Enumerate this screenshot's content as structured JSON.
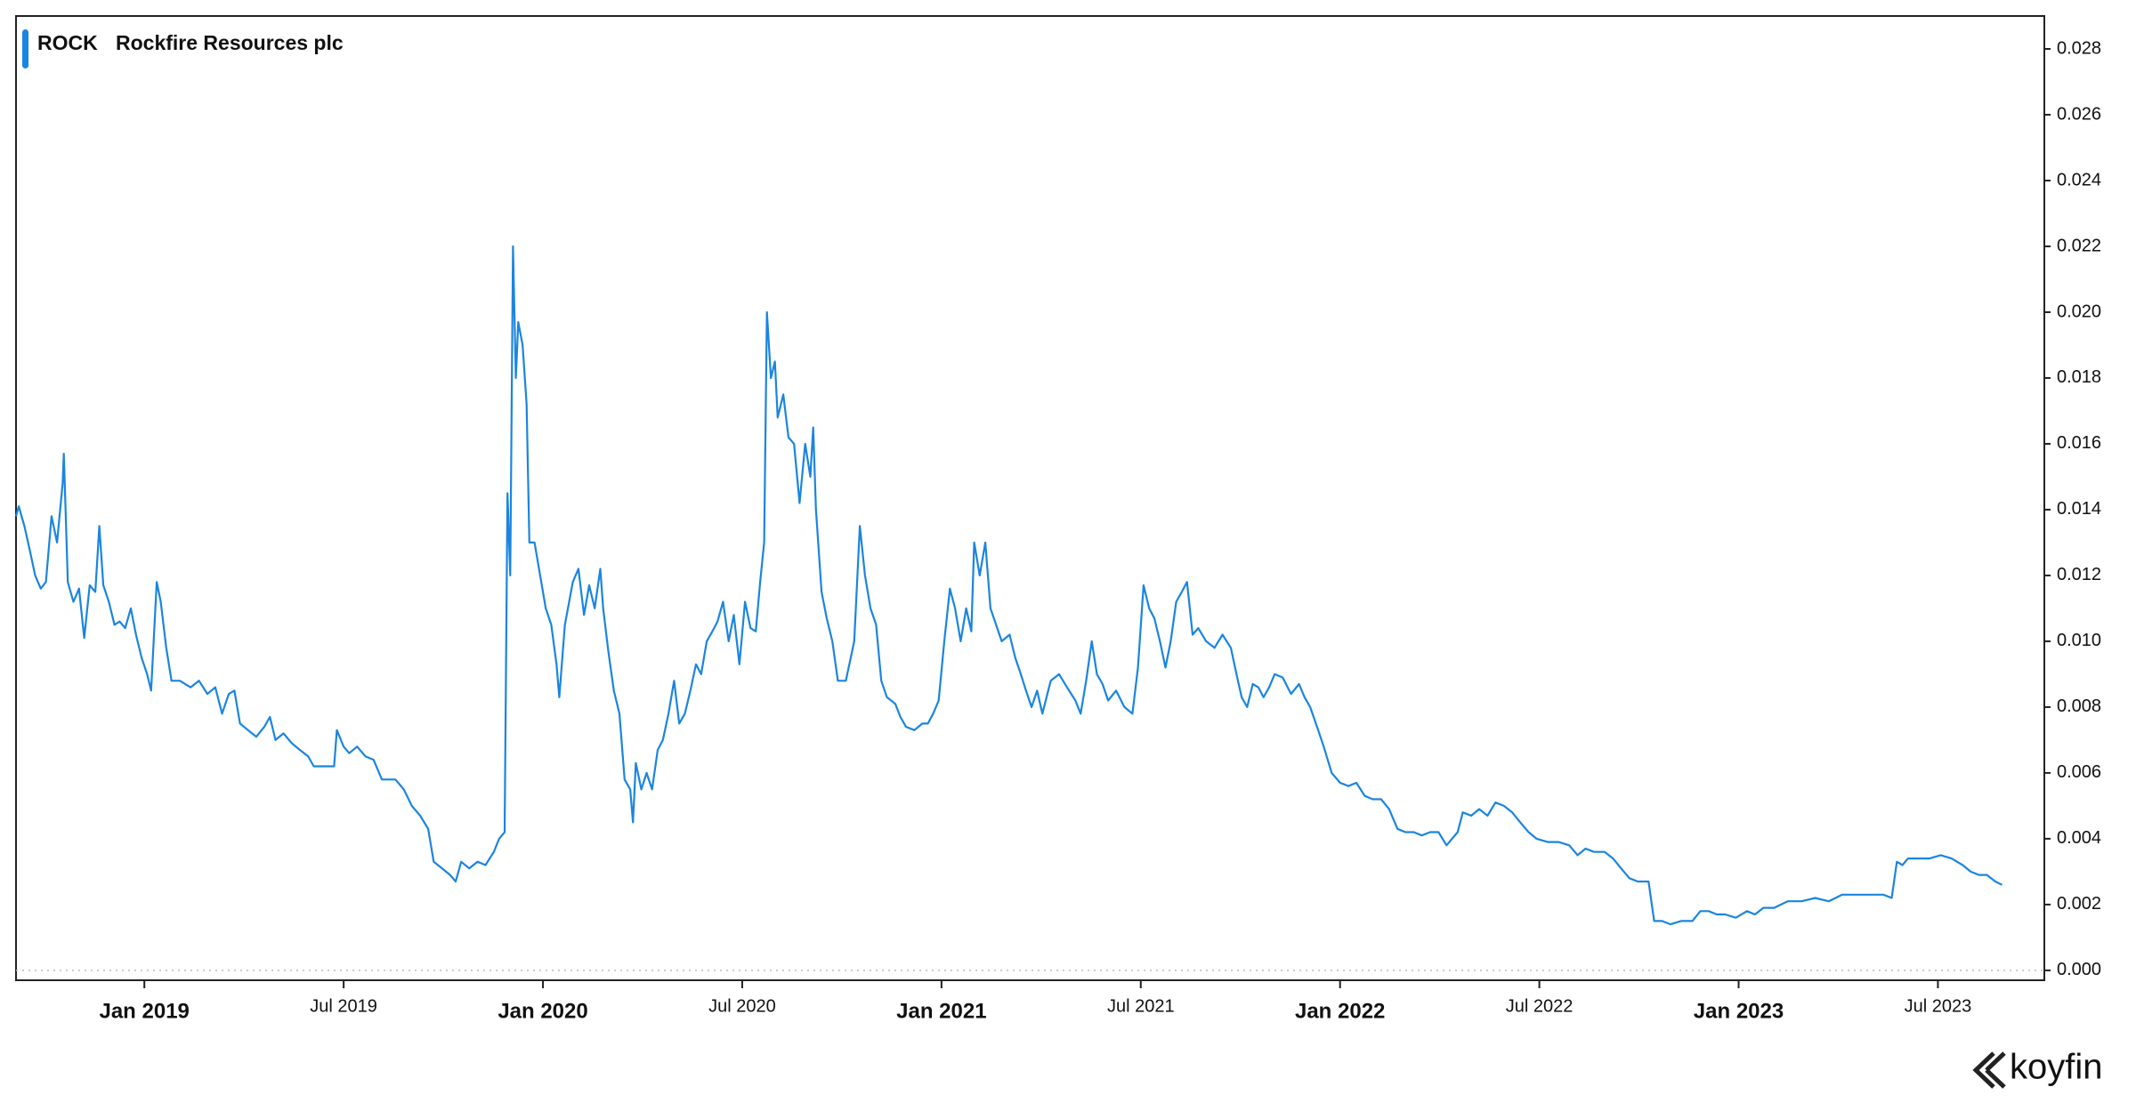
{
  "chart_data": {
    "type": "line",
    "logo": "koyfin",
    "x": [
      2018.678,
      2018.685,
      2018.699,
      2018.712,
      2018.726,
      2018.74,
      2018.753,
      2018.767,
      2018.781,
      2018.795,
      2018.798,
      2018.808,
      2018.822,
      2018.836,
      2018.849,
      2018.863,
      2018.877,
      2018.887,
      2018.897,
      2018.911,
      2018.925,
      2018.938,
      2018.952,
      2018.966,
      2018.979,
      2018.993,
      2019.007,
      2019.017,
      2019.031,
      2019.041,
      2019.055,
      2019.068,
      2019.089,
      2019.116,
      2019.137,
      2019.158,
      2019.178,
      2019.195,
      2019.212,
      2019.226,
      2019.24,
      2019.26,
      2019.281,
      2019.301,
      2019.315,
      2019.329,
      2019.349,
      2019.37,
      2019.39,
      2019.411,
      2019.425,
      2019.459,
      2019.476,
      2019.483,
      2019.5,
      2019.514,
      2019.534,
      2019.555,
      2019.575,
      2019.596,
      2019.63,
      2019.651,
      2019.671,
      2019.692,
      2019.712,
      2019.726,
      2019.747,
      2019.767,
      2019.781,
      2019.795,
      2019.815,
      2019.836,
      2019.856,
      2019.877,
      2019.89,
      2019.904,
      2019.911,
      2019.918,
      2019.925,
      2019.932,
      2019.938,
      2019.949,
      2019.959,
      2019.966,
      2019.979,
      2019.993,
      2020.007,
      2020.021,
      2020.034,
      2020.041,
      2020.055,
      2020.075,
      2020.089,
      2020.103,
      2020.116,
      2020.13,
      2020.144,
      2020.151,
      2020.164,
      2020.178,
      2020.192,
      2020.205,
      2020.219,
      2020.226,
      2020.233,
      2020.247,
      2020.26,
      2020.274,
      2020.288,
      2020.301,
      2020.315,
      2020.329,
      2020.342,
      2020.356,
      2020.37,
      2020.384,
      2020.397,
      2020.411,
      2020.425,
      2020.438,
      2020.452,
      2020.466,
      2020.479,
      2020.493,
      2020.507,
      2020.521,
      2020.534,
      2020.545,
      2020.555,
      2020.562,
      2020.572,
      2020.582,
      2020.589,
      2020.603,
      2020.616,
      2020.63,
      2020.644,
      2020.658,
      2020.671,
      2020.678,
      2020.685,
      2020.699,
      2020.712,
      2020.726,
      2020.74,
      2020.76,
      2020.781,
      2020.795,
      2020.808,
      2020.822,
      2020.836,
      2020.849,
      2020.863,
      2020.884,
      2020.897,
      2020.911,
      2020.932,
      2020.952,
      2020.966,
      2020.979,
      2020.993,
      2021.007,
      2021.021,
      2021.034,
      2021.048,
      2021.062,
      2021.075,
      2021.082,
      2021.096,
      2021.11,
      2021.123,
      2021.137,
      2021.151,
      2021.171,
      2021.185,
      2021.199,
      2021.212,
      2021.226,
      2021.24,
      2021.253,
      2021.274,
      2021.295,
      2021.315,
      2021.336,
      2021.349,
      2021.363,
      2021.377,
      2021.39,
      2021.404,
      2021.418,
      2021.438,
      2021.459,
      2021.479,
      2021.493,
      2021.507,
      2021.521,
      2021.534,
      2021.548,
      2021.562,
      2021.575,
      2021.589,
      2021.603,
      2021.616,
      2021.63,
      2021.644,
      2021.664,
      2021.685,
      2021.705,
      2021.726,
      2021.74,
      2021.753,
      2021.767,
      2021.781,
      2021.795,
      2021.808,
      2021.822,
      2021.836,
      2021.856,
      2021.877,
      2021.897,
      2021.911,
      2021.925,
      2021.945,
      2021.959,
      2021.979,
      2022.0,
      2022.021,
      2022.041,
      2022.062,
      2022.082,
      2022.103,
      2022.123,
      2022.144,
      2022.164,
      2022.185,
      2022.205,
      2022.226,
      2022.247,
      2022.267,
      2022.281,
      2022.295,
      2022.308,
      2022.329,
      2022.349,
      2022.37,
      2022.39,
      2022.411,
      2022.432,
      2022.452,
      2022.473,
      2022.493,
      2022.521,
      2022.548,
      2022.575,
      2022.596,
      2022.616,
      2022.637,
      2022.664,
      2022.685,
      2022.705,
      2022.726,
      2022.747,
      2022.774,
      2022.788,
      2022.808,
      2022.829,
      2022.856,
      2022.884,
      2022.904,
      2022.925,
      2022.945,
      2022.966,
      2022.993,
      2023.021,
      2023.041,
      2023.062,
      2023.089,
      2023.123,
      2023.158,
      2023.192,
      2023.226,
      2023.26,
      2023.295,
      2023.329,
      2023.363,
      2023.384,
      2023.397,
      2023.411,
      2023.425,
      2023.452,
      2023.479,
      2023.507,
      2023.534,
      2023.562,
      2023.582,
      2023.603,
      2023.623,
      2023.644,
      2023.661
    ],
    "series": [
      {
        "name": "ROCK",
        "description": "Rockfire Resources plc",
        "color": "#1a85e0",
        "values": [
          0.0138,
          0.0141,
          0.0135,
          0.0128,
          0.012,
          0.0116,
          0.0118,
          0.0138,
          0.013,
          0.0148,
          0.0157,
          0.0118,
          0.0112,
          0.0116,
          0.0101,
          0.0117,
          0.0115,
          0.0135,
          0.0117,
          0.0112,
          0.0105,
          0.0106,
          0.0104,
          0.011,
          0.0102,
          0.0095,
          0.009,
          0.0085,
          0.0118,
          0.0112,
          0.0098,
          0.0088,
          0.0088,
          0.0086,
          0.0088,
          0.0084,
          0.0086,
          0.0078,
          0.0084,
          0.0085,
          0.0075,
          0.0073,
          0.0071,
          0.0074,
          0.0077,
          0.007,
          0.0072,
          0.0069,
          0.0067,
          0.0065,
          0.0062,
          0.0062,
          0.0062,
          0.0073,
          0.0068,
          0.0066,
          0.0068,
          0.0065,
          0.0064,
          0.0058,
          0.0058,
          0.0055,
          0.005,
          0.0047,
          0.0043,
          0.0033,
          0.0031,
          0.0029,
          0.0027,
          0.0033,
          0.0031,
          0.0033,
          0.0032,
          0.0036,
          0.004,
          0.0042,
          0.0145,
          0.012,
          0.022,
          0.018,
          0.0197,
          0.019,
          0.0172,
          0.013,
          0.013,
          0.012,
          0.011,
          0.0105,
          0.0093,
          0.0083,
          0.0105,
          0.0118,
          0.0122,
          0.0108,
          0.0117,
          0.011,
          0.0122,
          0.011,
          0.0097,
          0.0085,
          0.0078,
          0.0058,
          0.0055,
          0.0045,
          0.0063,
          0.0055,
          0.006,
          0.0055,
          0.0067,
          0.007,
          0.0078,
          0.0088,
          0.0075,
          0.0078,
          0.0085,
          0.0093,
          0.009,
          0.01,
          0.0103,
          0.0106,
          0.0112,
          0.01,
          0.0108,
          0.0093,
          0.0112,
          0.0104,
          0.0103,
          0.0118,
          0.013,
          0.02,
          0.018,
          0.0185,
          0.0168,
          0.0175,
          0.0162,
          0.016,
          0.0142,
          0.016,
          0.015,
          0.0165,
          0.014,
          0.0115,
          0.0107,
          0.01,
          0.0088,
          0.0088,
          0.01,
          0.0135,
          0.012,
          0.011,
          0.0105,
          0.0088,
          0.0083,
          0.0081,
          0.0077,
          0.0074,
          0.0073,
          0.0075,
          0.0075,
          0.0078,
          0.0082,
          0.01,
          0.0116,
          0.011,
          0.01,
          0.011,
          0.0103,
          0.013,
          0.012,
          0.013,
          0.011,
          0.0105,
          0.01,
          0.0102,
          0.0095,
          0.009,
          0.0085,
          0.008,
          0.0085,
          0.0078,
          0.0088,
          0.009,
          0.0086,
          0.0082,
          0.0078,
          0.0088,
          0.01,
          0.009,
          0.0087,
          0.0082,
          0.0085,
          0.008,
          0.0078,
          0.0092,
          0.0117,
          0.011,
          0.0107,
          0.01,
          0.0092,
          0.01,
          0.0112,
          0.0115,
          0.0118,
          0.0102,
          0.0104,
          0.01,
          0.0098,
          0.0102,
          0.0098,
          0.009,
          0.0083,
          0.008,
          0.0087,
          0.0086,
          0.0083,
          0.0086,
          0.009,
          0.0089,
          0.0084,
          0.0087,
          0.0083,
          0.008,
          0.0073,
          0.0068,
          0.006,
          0.0057,
          0.0056,
          0.0057,
          0.0053,
          0.0052,
          0.0052,
          0.0049,
          0.0043,
          0.0042,
          0.0042,
          0.0041,
          0.0042,
          0.0042,
          0.0038,
          0.004,
          0.0042,
          0.0048,
          0.0047,
          0.0049,
          0.0047,
          0.0051,
          0.005,
          0.0048,
          0.0045,
          0.0042,
          0.004,
          0.0039,
          0.0039,
          0.0038,
          0.0035,
          0.0037,
          0.0036,
          0.0036,
          0.0034,
          0.0031,
          0.0028,
          0.0027,
          0.0027,
          0.0015,
          0.0015,
          0.0014,
          0.0015,
          0.0015,
          0.0018,
          0.0018,
          0.0017,
          0.0017,
          0.0016,
          0.0018,
          0.0017,
          0.0019,
          0.0019,
          0.0021,
          0.0021,
          0.0022,
          0.0021,
          0.0023,
          0.0023,
          0.0023,
          0.0023,
          0.0022,
          0.0033,
          0.0032,
          0.0034,
          0.0034,
          0.0034,
          0.0035,
          0.0034,
          0.0032,
          0.003,
          0.0029,
          0.0029,
          0.0027,
          0.0026
        ]
      }
    ],
    "xlim": [
      2018.678,
      2023.767
    ],
    "xticks": [
      {
        "value": 2019,
        "label": "Jan 2019"
      },
      {
        "value": 2019.5,
        "label": "Jul 2019"
      },
      {
        "value": 2020,
        "label": "Jan 2020"
      },
      {
        "value": 2020.5,
        "label": "Jul 2020"
      },
      {
        "value": 2021,
        "label": "Jan 2021"
      },
      {
        "value": 2021.5,
        "label": "Jul 2021"
      },
      {
        "value": 2022,
        "label": "Jan 2022"
      },
      {
        "value": 2022.5,
        "label": "Jul 2022"
      },
      {
        "value": 2023,
        "label": "Jan 2023"
      },
      {
        "value": 2023.5,
        "label": "Jul 2023"
      }
    ],
    "ylim": [
      -0.0003,
      0.029
    ],
    "yticks": [
      {
        "value": 0,
        "label": "0.000"
      },
      {
        "value": 0.002,
        "label": "0.002"
      },
      {
        "value": 0.004,
        "label": "0.004"
      },
      {
        "value": 0.006,
        "label": "0.006"
      },
      {
        "value": 0.008,
        "label": "0.008"
      },
      {
        "value": 0.01,
        "label": "0.010"
      },
      {
        "value": 0.012,
        "label": "0.012"
      },
      {
        "value": 0.014,
        "label": "0.014"
      },
      {
        "value": 0.016,
        "label": "0.016"
      },
      {
        "value": 0.018,
        "label": "0.018"
      },
      {
        "value": 0.02,
        "label": "0.020"
      },
      {
        "value": 0.022,
        "label": "0.022"
      },
      {
        "value": 0.024,
        "label": "0.024"
      },
      {
        "value": 0.026,
        "label": "0.026"
      },
      {
        "value": 0.028,
        "label": "0.028"
      }
    ]
  }
}
